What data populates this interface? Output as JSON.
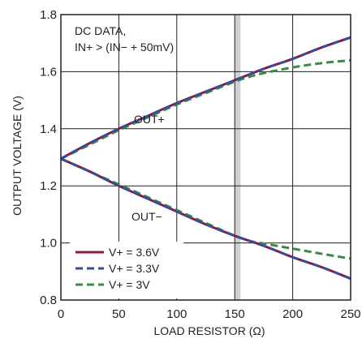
{
  "chart_data": {
    "type": "line",
    "xlabel": "LOAD RESISTOR (Ω)",
    "ylabel": "OUTPUT VOLTAGE (V)",
    "xlim": [
      0,
      250
    ],
    "ylim": [
      0.8,
      1.8
    ],
    "xticks": [
      0,
      50,
      100,
      150,
      200,
      250
    ],
    "yticks": [
      0.8,
      1.0,
      1.2,
      1.4,
      1.6,
      1.8
    ],
    "xtick_labels": [
      "0",
      "50",
      "100",
      "150",
      "200",
      "250"
    ],
    "ytick_labels": [
      "0.8",
      "1.0",
      "1.2",
      "1.4",
      "1.6",
      "1.8"
    ],
    "grid": true,
    "legend_position": "bottom-left",
    "annotation_lines": [
      "DC DATA,",
      "IN+ > (IN− + 50mV)"
    ],
    "label_out_plus": "OUT+",
    "label_out_minus": "OUT−",
    "highlight_band": [
      150,
      155
    ],
    "series": [
      {
        "name": "V+ = 3.6V",
        "color": "#8b1a3a",
        "dash": "solid",
        "out_plus": {
          "x": [
            0,
            25,
            50,
            75,
            100,
            125,
            150,
            175,
            200,
            225,
            250
          ],
          "y": [
            1.295,
            1.35,
            1.4,
            1.445,
            1.49,
            1.53,
            1.57,
            1.61,
            1.645,
            1.685,
            1.72
          ]
        },
        "out_minus": {
          "x": [
            0,
            25,
            50,
            75,
            100,
            125,
            150,
            175,
            200,
            225,
            250
          ],
          "y": [
            1.295,
            1.25,
            1.2,
            1.155,
            1.11,
            1.065,
            1.025,
            0.99,
            0.95,
            0.915,
            0.875
          ]
        }
      },
      {
        "name": "V+ = 3.3V",
        "color": "#3a4a9c",
        "dash": "dashed",
        "out_plus": {
          "x": [
            0,
            25,
            50,
            75,
            100,
            125,
            150,
            175,
            200,
            225,
            250
          ],
          "y": [
            1.295,
            1.35,
            1.4,
            1.445,
            1.49,
            1.53,
            1.57,
            1.61,
            1.645,
            1.685,
            1.72
          ]
        },
        "out_minus": {
          "x": [
            0,
            25,
            50,
            75,
            100,
            125,
            150,
            175,
            200,
            225,
            250
          ],
          "y": [
            1.295,
            1.25,
            1.2,
            1.155,
            1.11,
            1.065,
            1.025,
            0.99,
            0.95,
            0.915,
            0.875
          ]
        }
      },
      {
        "name": "V+ = 3V",
        "color": "#3c8a45",
        "dash": "dashed",
        "out_plus": {
          "x": [
            0,
            25,
            50,
            75,
            100,
            125,
            150,
            165,
            175,
            200,
            225,
            250
          ],
          "y": [
            1.295,
            1.345,
            1.395,
            1.44,
            1.485,
            1.525,
            1.565,
            1.585,
            1.595,
            1.615,
            1.63,
            1.64
          ]
        },
        "out_minus": {
          "x": [
            0,
            25,
            50,
            75,
            100,
            125,
            150,
            165,
            175,
            200,
            225,
            250
          ],
          "y": [
            1.295,
            1.25,
            1.205,
            1.16,
            1.115,
            1.07,
            1.025,
            1.005,
            0.998,
            0.98,
            0.962,
            0.945
          ]
        }
      }
    ]
  }
}
